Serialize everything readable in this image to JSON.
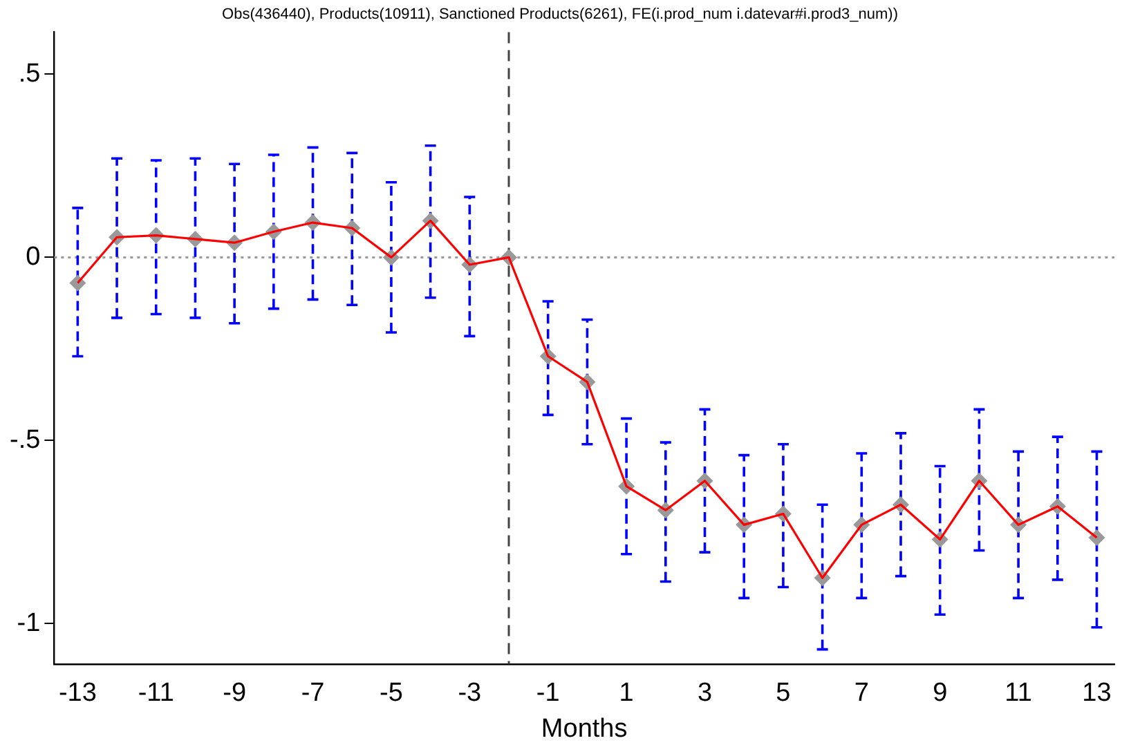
{
  "chart_data": {
    "type": "line",
    "title": "Obs(436440), Products(10911), Sanctioned Products(6261), FE(i.prod_num i.datevar#i.prod3_num))",
    "xlabel": "Months",
    "x": [
      -13,
      -12,
      -11,
      -10,
      -9,
      -8,
      -7,
      -6,
      -5,
      -4,
      -3,
      -2,
      -1,
      0,
      1,
      2,
      3,
      4,
      5,
      6,
      7,
      8,
      9,
      10,
      11,
      12,
      13
    ],
    "series": [
      {
        "type": "line",
        "color": "#ff0000",
        "marker": "none",
        "values": [
          -0.07,
          0.055,
          0.06,
          0.05,
          0.04,
          0.07,
          0.095,
          0.08,
          0,
          0.1,
          -0.02,
          0,
          -0.27,
          -0.34,
          -0.625,
          -0.69,
          -0.61,
          -0.73,
          -0.7,
          -0.875,
          -0.73,
          -0.675,
          -0.77,
          -0.61,
          -0.73,
          -0.68,
          -0.765
        ]
      },
      {
        "type": "scatter",
        "color": "#999999",
        "marker": "diamond",
        "values": [
          -0.07,
          0.055,
          0.06,
          0.05,
          0.04,
          0.07,
          0.095,
          0.08,
          0,
          0.1,
          -0.02,
          0,
          -0.27,
          -0.34,
          -0.625,
          -0.69,
          -0.61,
          -0.73,
          -0.7,
          -0.875,
          -0.73,
          -0.675,
          -0.77,
          -0.61,
          -0.73,
          -0.68,
          -0.765
        ],
        "errors": [
          [
            -0.27,
            0.135
          ],
          [
            -0.165,
            0.27
          ],
          [
            -0.155,
            0.265
          ],
          [
            -0.165,
            0.27
          ],
          [
            -0.18,
            0.255
          ],
          [
            -0.14,
            0.28
          ],
          [
            -0.115,
            0.3
          ],
          [
            -0.13,
            0.285
          ],
          [
            -0.205,
            0.205
          ],
          [
            -0.11,
            0.305
          ],
          [
            -0.215,
            0.165
          ],
          null,
          [
            -0.43,
            -0.12
          ],
          [
            -0.51,
            -0.17
          ],
          [
            -0.81,
            -0.44
          ],
          [
            -0.885,
            -0.505
          ],
          [
            -0.805,
            -0.415
          ],
          [
            -0.93,
            -0.54
          ],
          [
            -0.9,
            -0.51
          ],
          [
            -1.07,
            -0.675
          ],
          [
            -0.93,
            -0.535
          ],
          [
            -0.87,
            -0.48
          ],
          [
            -0.975,
            -0.57
          ],
          [
            -0.8,
            -0.415
          ],
          [
            -0.93,
            -0.53
          ],
          [
            -0.88,
            -0.49
          ],
          [
            -1.01,
            -0.53
          ]
        ]
      }
    ],
    "xlim": [
      -13.6,
      13.45
    ],
    "xticks": [
      -13,
      -11,
      -9,
      -7,
      -5,
      -3,
      -1,
      1,
      3,
      5,
      7,
      9,
      11,
      13
    ],
    "ylim": [
      -1.11,
      0.615
    ],
    "yticks": [
      {
        "value": -1,
        "label": "-1"
      },
      {
        "value": -0.5,
        "label": "-.5"
      },
      {
        "value": 0,
        "label": "0"
      },
      {
        "value": 0.5,
        "label": ".5"
      }
    ],
    "ref_lines": [
      {
        "axis": "x",
        "value": -2,
        "color": "#444444",
        "line_style": "dashed"
      },
      {
        "axis": "y",
        "value": 0,
        "color": "#999999",
        "line_style": "dotted"
      }
    ],
    "grid": false,
    "legend": false
  }
}
